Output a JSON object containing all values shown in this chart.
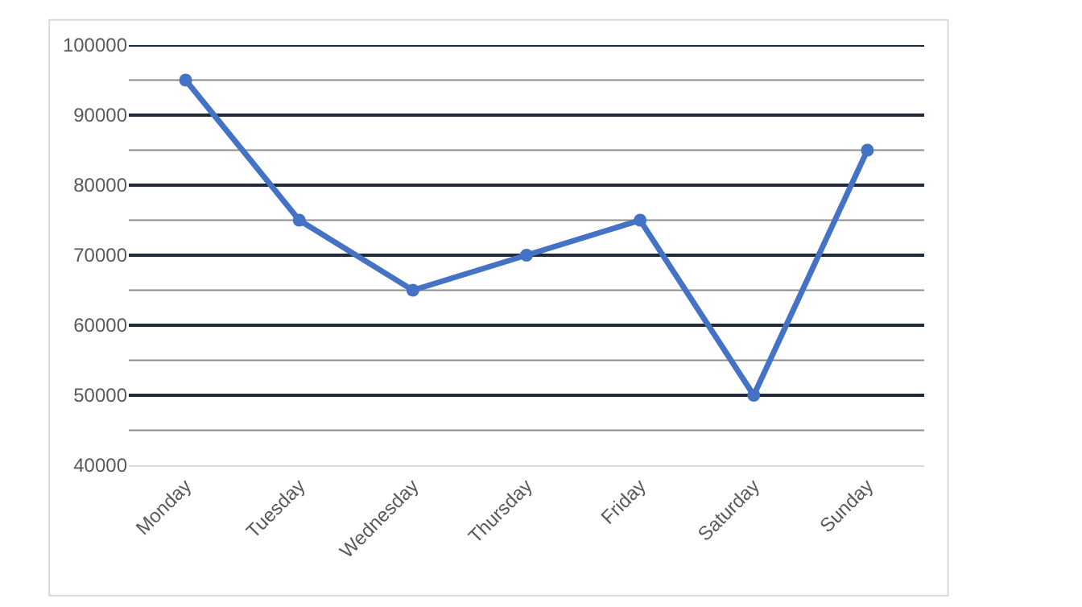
{
  "chart_data": {
    "type": "line",
    "categories": [
      "Monday",
      "Tuesday",
      "Wednesday",
      "Thursday",
      "Friday",
      "Saturday",
      "Sunday"
    ],
    "series": [
      {
        "color": "#4472c4",
        "values": [
          95000,
          75000,
          65000,
          70000,
          75000,
          50000,
          85000
        ]
      }
    ],
    "ylim": [
      40000,
      100000
    ],
    "yticks": [
      40000,
      {
        "value": 45000,
        "label": null
      },
      50000,
      {
        "value": 55000,
        "label": null
      },
      60000,
      {
        "value": 65000,
        "label": null
      },
      70000,
      {
        "value": 75000,
        "label": null
      },
      80000,
      {
        "value": 85000,
        "label": null
      },
      90000,
      {
        "value": 95000,
        "label": null
      },
      100000
    ],
    "grid": true,
    "marker": "circle",
    "line_style": "solid"
  }
}
